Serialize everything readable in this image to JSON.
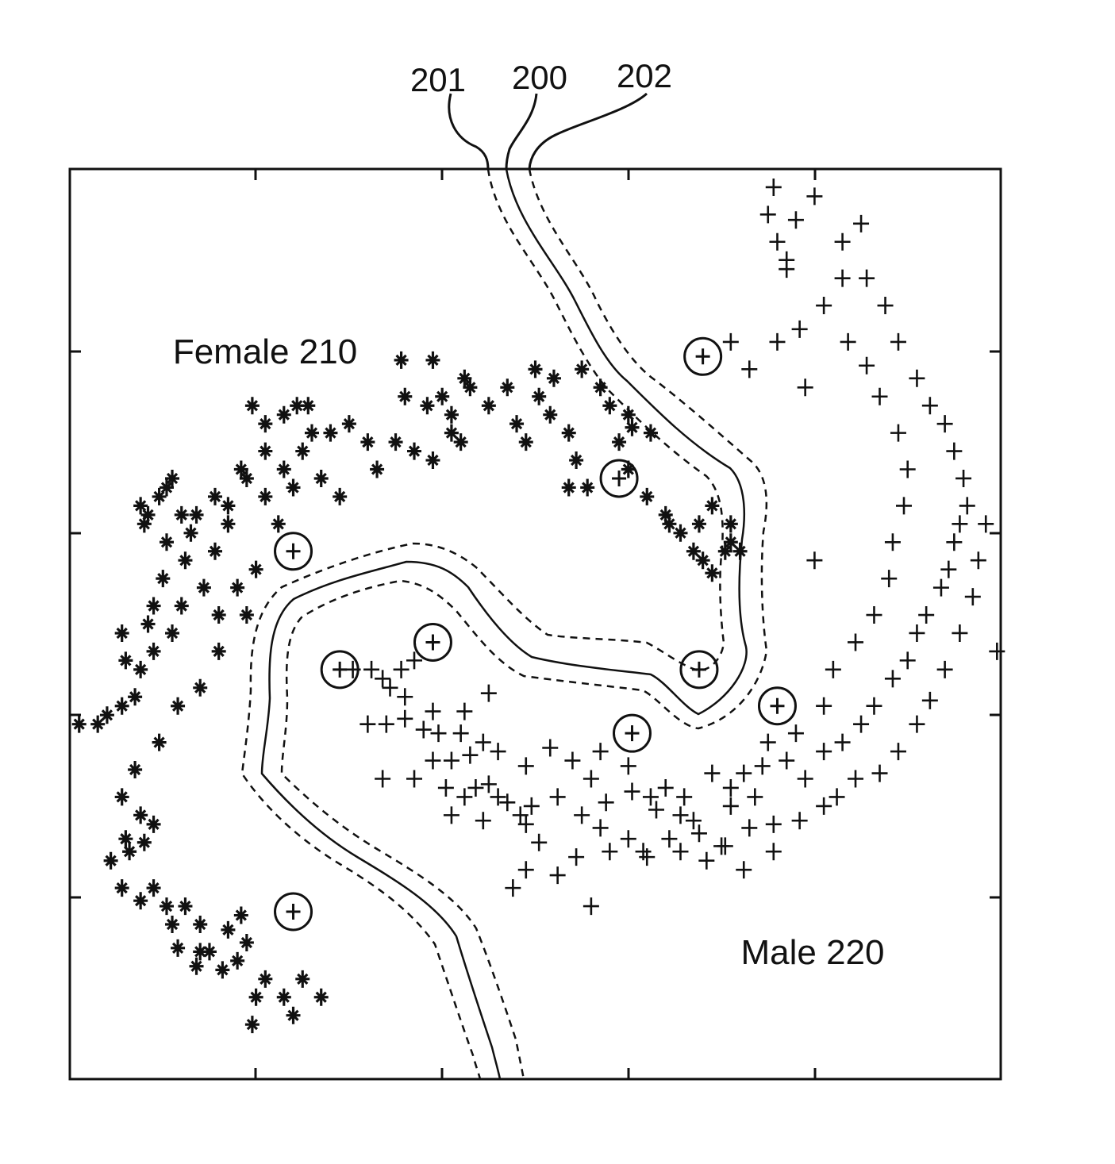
{
  "reference_numerals": {
    "lower_margin": "201",
    "decision_boundary": "200",
    "upper_margin": "202"
  },
  "region_labels": {
    "female": "Female 210",
    "male": "Male 220"
  },
  "legend_markers": {
    "female_class": "star-marker",
    "male_class": "plus-marker",
    "support_vector": "circle-marker"
  },
  "colors": {
    "ink": "#111111",
    "background": "#ffffff"
  },
  "chart_data": {
    "type": "scatter",
    "title": "",
    "xlabel": "",
    "ylabel": "",
    "xlim": [
      0,
      5
    ],
    "ylim": [
      0,
      5
    ],
    "grid": false,
    "series": [
      {
        "name": "Female 210",
        "marker": "star",
        "points": [
          [
            0.05,
            1.95
          ],
          [
            0.15,
            1.95
          ],
          [
            0.2,
            2.0
          ],
          [
            0.28,
            2.05
          ],
          [
            0.35,
            2.1
          ],
          [
            0.3,
            2.3
          ],
          [
            0.28,
            2.45
          ],
          [
            0.38,
            2.25
          ],
          [
            0.45,
            2.35
          ],
          [
            0.42,
            2.5
          ],
          [
            0.55,
            2.45
          ],
          [
            0.6,
            2.6
          ],
          [
            0.5,
            2.75
          ],
          [
            0.45,
            2.6
          ],
          [
            0.52,
            2.95
          ],
          [
            0.62,
            2.85
          ],
          [
            0.72,
            2.7
          ],
          [
            0.8,
            2.55
          ],
          [
            0.8,
            2.35
          ],
          [
            0.7,
            2.15
          ],
          [
            0.95,
            2.55
          ],
          [
            0.78,
            2.9
          ],
          [
            0.6,
            3.1
          ],
          [
            0.48,
            3.2
          ],
          [
            0.4,
            3.05
          ],
          [
            0.65,
            3.0
          ],
          [
            0.85,
            3.05
          ],
          [
            0.85,
            3.15
          ],
          [
            0.9,
            2.7
          ],
          [
            0.78,
            3.2
          ],
          [
            0.95,
            3.3
          ],
          [
            1.05,
            3.2
          ],
          [
            1.15,
            3.35
          ],
          [
            1.05,
            3.45
          ],
          [
            1.0,
            2.8
          ],
          [
            1.12,
            3.05
          ],
          [
            1.2,
            3.25
          ],
          [
            1.25,
            3.45
          ],
          [
            0.68,
            3.1
          ],
          [
            0.55,
            3.3
          ],
          [
            0.38,
            3.15
          ],
          [
            1.3,
            3.55
          ],
          [
            1.4,
            3.55
          ],
          [
            1.5,
            3.6
          ],
          [
            1.6,
            3.5
          ],
          [
            1.35,
            3.3
          ],
          [
            1.45,
            3.2
          ],
          [
            0.92,
            3.35
          ],
          [
            1.65,
            3.35
          ],
          [
            1.75,
            3.5
          ],
          [
            1.85,
            3.45
          ],
          [
            1.95,
            3.4
          ],
          [
            1.05,
            3.6
          ],
          [
            0.98,
            3.7
          ],
          [
            1.22,
            3.7
          ],
          [
            1.15,
            3.65
          ],
          [
            1.28,
            3.7
          ],
          [
            0.52,
            3.25
          ],
          [
            0.42,
            3.1
          ],
          [
            1.8,
            3.75
          ],
          [
            1.92,
            3.7
          ],
          [
            2.05,
            3.65
          ],
          [
            2.1,
            3.5
          ],
          [
            2.0,
            3.75
          ],
          [
            2.15,
            3.8
          ],
          [
            2.25,
            3.7
          ],
          [
            2.35,
            3.8
          ],
          [
            2.4,
            3.6
          ],
          [
            2.52,
            3.75
          ],
          [
            2.45,
            3.5
          ],
          [
            2.58,
            3.65
          ],
          [
            2.68,
            3.55
          ],
          [
            2.72,
            3.4
          ],
          [
            2.6,
            3.85
          ],
          [
            2.75,
            3.9
          ],
          [
            2.85,
            3.8
          ],
          [
            2.9,
            3.7
          ],
          [
            2.95,
            3.5
          ],
          [
            2.78,
            3.25
          ],
          [
            2.68,
            3.25
          ],
          [
            3.0,
            3.35
          ],
          [
            3.1,
            3.2
          ],
          [
            3.2,
            3.1
          ],
          [
            3.28,
            3.0
          ],
          [
            3.38,
            3.05
          ],
          [
            3.45,
            3.15
          ],
          [
            3.4,
            2.85
          ],
          [
            2.5,
            3.9
          ],
          [
            2.05,
            3.55
          ],
          [
            1.78,
            3.95
          ],
          [
            1.95,
            3.95
          ],
          [
            2.12,
            3.85
          ],
          [
            0.58,
            2.05
          ],
          [
            0.48,
            1.85
          ],
          [
            0.35,
            1.7
          ],
          [
            0.28,
            1.55
          ],
          [
            0.38,
            1.45
          ],
          [
            0.3,
            1.32
          ],
          [
            0.32,
            1.25
          ],
          [
            0.22,
            1.2
          ],
          [
            0.28,
            1.05
          ],
          [
            0.38,
            0.98
          ],
          [
            0.45,
            1.05
          ],
          [
            0.52,
            0.95
          ],
          [
            0.55,
            0.85
          ],
          [
            0.62,
            0.95
          ],
          [
            0.7,
            0.85
          ],
          [
            0.75,
            0.7
          ],
          [
            0.82,
            0.6
          ],
          [
            0.9,
            0.65
          ],
          [
            0.95,
            0.75
          ],
          [
            1.05,
            0.55
          ],
          [
            1.15,
            0.45
          ],
          [
            1.25,
            0.55
          ],
          [
            1.35,
            0.45
          ],
          [
            1.0,
            0.45
          ],
          [
            0.58,
            0.72
          ],
          [
            0.68,
            0.62
          ],
          [
            0.85,
            0.82
          ],
          [
            0.92,
            0.9
          ],
          [
            0.4,
            1.3
          ],
          [
            0.45,
            1.4
          ],
          [
            0.7,
            0.7
          ],
          [
            0.98,
            0.3
          ],
          [
            1.2,
            0.35
          ],
          [
            3.55,
            3.05
          ],
          [
            3.6,
            2.9
          ],
          [
            3.52,
            2.9
          ],
          [
            3.45,
            2.78
          ],
          [
            3.02,
            3.58
          ],
          [
            3.0,
            3.65
          ],
          [
            3.12,
            3.55
          ],
          [
            3.22,
            3.05
          ],
          [
            3.35,
            2.9
          ],
          [
            3.55,
            2.95
          ]
        ]
      },
      {
        "name": "Male 220",
        "marker": "plus",
        "points": [
          [
            1.52,
            2.25
          ],
          [
            1.62,
            2.25
          ],
          [
            1.68,
            2.2
          ],
          [
            1.78,
            2.25
          ],
          [
            1.8,
            2.1
          ],
          [
            1.72,
            2.15
          ],
          [
            1.85,
            2.3
          ],
          [
            1.6,
            1.95
          ],
          [
            1.7,
            1.95
          ],
          [
            1.8,
            1.98
          ],
          [
            1.9,
            1.92
          ],
          [
            1.95,
            2.02
          ],
          [
            1.98,
            1.9
          ],
          [
            2.1,
            1.9
          ],
          [
            2.22,
            1.85
          ],
          [
            2.3,
            1.8
          ],
          [
            2.45,
            1.72
          ],
          [
            2.58,
            1.82
          ],
          [
            2.7,
            1.75
          ],
          [
            2.85,
            1.8
          ],
          [
            2.8,
            1.65
          ],
          [
            3.0,
            1.72
          ],
          [
            3.12,
            1.55
          ],
          [
            3.2,
            1.6
          ],
          [
            3.3,
            1.55
          ],
          [
            3.45,
            1.68
          ],
          [
            3.55,
            1.6
          ],
          [
            3.68,
            1.55
          ],
          [
            3.72,
            1.72
          ],
          [
            3.85,
            1.75
          ],
          [
            3.95,
            1.65
          ],
          [
            4.05,
            1.8
          ],
          [
            4.15,
            1.85
          ],
          [
            4.25,
            1.95
          ],
          [
            4.32,
            2.05
          ],
          [
            4.42,
            2.2
          ],
          [
            4.5,
            2.3
          ],
          [
            4.55,
            2.45
          ],
          [
            4.6,
            2.55
          ],
          [
            4.68,
            2.7
          ],
          [
            4.72,
            2.8
          ],
          [
            4.75,
            2.95
          ],
          [
            4.78,
            3.05
          ],
          [
            4.82,
            3.15
          ],
          [
            4.8,
            3.3
          ],
          [
            4.75,
            3.45
          ],
          [
            4.7,
            3.6
          ],
          [
            4.62,
            3.7
          ],
          [
            4.55,
            3.85
          ],
          [
            4.45,
            4.05
          ],
          [
            4.38,
            4.25
          ],
          [
            4.28,
            4.4
          ],
          [
            4.15,
            4.6
          ],
          [
            4.0,
            4.85
          ],
          [
            3.9,
            4.72
          ],
          [
            3.8,
            4.6
          ],
          [
            3.75,
            4.75
          ],
          [
            3.85,
            4.5
          ],
          [
            4.15,
            4.4
          ],
          [
            4.05,
            4.25
          ],
          [
            4.18,
            4.05
          ],
          [
            4.28,
            3.92
          ],
          [
            4.35,
            3.75
          ],
          [
            4.45,
            3.55
          ],
          [
            4.5,
            3.35
          ],
          [
            4.48,
            3.15
          ],
          [
            4.42,
            2.95
          ],
          [
            4.4,
            2.75
          ],
          [
            4.32,
            2.55
          ],
          [
            4.22,
            2.4
          ],
          [
            4.1,
            2.25
          ],
          [
            4.05,
            2.05
          ],
          [
            3.9,
            1.9
          ],
          [
            3.75,
            1.85
          ],
          [
            3.62,
            1.68
          ],
          [
            3.55,
            1.5
          ],
          [
            3.5,
            1.28
          ],
          [
            3.35,
            1.42
          ],
          [
            3.22,
            1.32
          ],
          [
            3.1,
            1.22
          ],
          [
            3.0,
            1.32
          ],
          [
            2.85,
            1.38
          ],
          [
            2.72,
            1.22
          ],
          [
            2.62,
            1.12
          ],
          [
            2.52,
            1.3
          ],
          [
            2.45,
            1.4
          ],
          [
            2.42,
            1.45
          ],
          [
            2.3,
            1.55
          ],
          [
            2.18,
            1.6
          ],
          [
            2.05,
            1.75
          ],
          [
            2.25,
            1.62
          ],
          [
            2.05,
            1.45
          ],
          [
            2.02,
            1.6
          ],
          [
            2.12,
            1.55
          ],
          [
            2.22,
            1.42
          ],
          [
            2.35,
            1.52
          ],
          [
            2.48,
            1.5
          ],
          [
            2.62,
            1.55
          ],
          [
            2.75,
            1.45
          ],
          [
            2.88,
            1.52
          ],
          [
            3.02,
            1.58
          ],
          [
            3.15,
            1.48
          ],
          [
            3.28,
            1.45
          ],
          [
            3.38,
            1.35
          ],
          [
            3.52,
            1.28
          ],
          [
            3.65,
            1.38
          ],
          [
            3.78,
            1.4
          ],
          [
            3.92,
            1.42
          ],
          [
            4.05,
            1.5
          ],
          [
            4.12,
            1.55
          ],
          [
            4.22,
            1.65
          ],
          [
            4.35,
            1.68
          ],
          [
            4.45,
            1.8
          ],
          [
            4.55,
            1.95
          ],
          [
            4.62,
            2.08
          ],
          [
            4.7,
            2.25
          ],
          [
            4.78,
            2.45
          ],
          [
            4.85,
            2.65
          ],
          [
            4.88,
            2.85
          ],
          [
            4.92,
            3.05
          ],
          [
            4.98,
            2.35
          ],
          [
            4.0,
            2.85
          ],
          [
            3.95,
            3.8
          ],
          [
            3.65,
            3.9
          ],
          [
            3.55,
            4.05
          ],
          [
            3.78,
            4.9
          ],
          [
            3.85,
            4.45
          ],
          [
            4.25,
            4.7
          ],
          [
            3.8,
            4.05
          ],
          [
            3.92,
            4.12
          ],
          [
            2.8,
            0.95
          ],
          [
            2.9,
            1.25
          ],
          [
            3.08,
            1.25
          ],
          [
            3.28,
            1.25
          ],
          [
            3.42,
            1.2
          ],
          [
            3.62,
            1.15
          ],
          [
            3.78,
            1.25
          ],
          [
            2.45,
            1.15
          ],
          [
            2.38,
            1.05
          ],
          [
            1.68,
            1.65
          ],
          [
            1.85,
            1.65
          ],
          [
            1.95,
            1.75
          ],
          [
            2.15,
            1.78
          ],
          [
            2.12,
            2.02
          ],
          [
            2.25,
            2.12
          ]
        ]
      },
      {
        "name": "Support vectors",
        "marker": "circle",
        "points": [
          [
            1.2,
            2.9
          ],
          [
            1.45,
            2.25
          ],
          [
            1.95,
            2.4
          ],
          [
            2.95,
            3.3
          ],
          [
            3.38,
            2.25
          ],
          [
            3.4,
            3.97
          ],
          [
            3.8,
            2.05
          ],
          [
            3.02,
            1.9
          ],
          [
            1.2,
            0.92
          ]
        ]
      }
    ]
  }
}
